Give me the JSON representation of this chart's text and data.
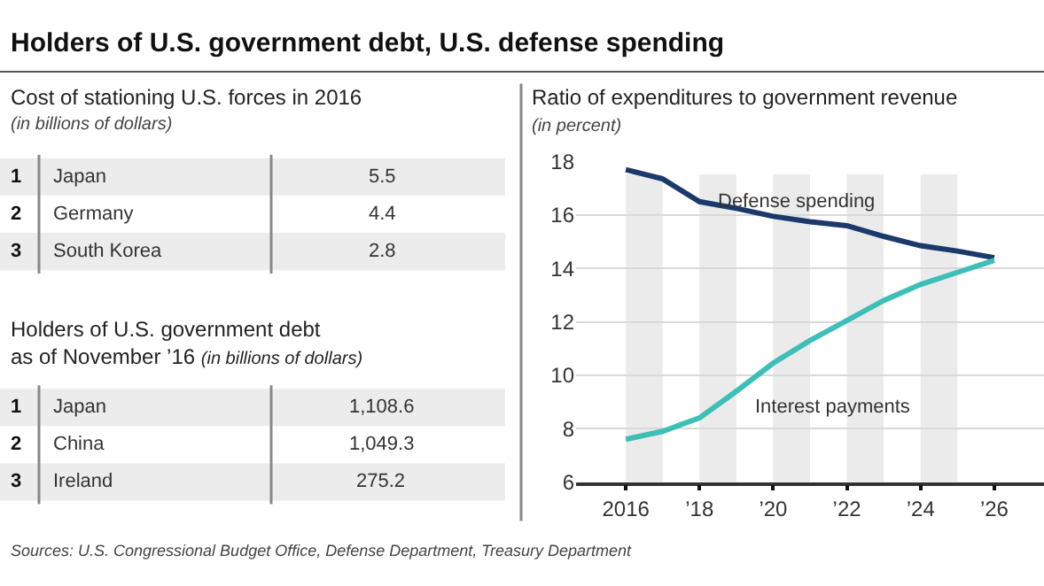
{
  "chart_data": [
    {
      "type": "other",
      "title": "Holders of U.S. government debt, U.S. defense spending",
      "annotations": [
        "Sources: U.S. Congressional Budget Office, Defense Department, Treasury Department"
      ]
    },
    {
      "type": "other",
      "title": "Cost of stationing U.S. forces in 2016",
      "subtitle": "(in billions of dollars)",
      "categories": [
        "Japan",
        "Germany",
        "South Korea"
      ],
      "values": [
        5.5,
        4.4,
        2.8
      ],
      "data_labels": true,
      "annotations": [
        "1",
        "2",
        "3"
      ]
    },
    {
      "type": "other",
      "title": "Holders of U.S. government debt\nas of November ’16",
      "subtitle": "(in billions of dollars)",
      "categories": [
        "Japan",
        "China",
        "Ireland"
      ],
      "values": [
        1108.6,
        1049.3,
        275.2
      ],
      "value_labels": [
        "1,108.6",
        "1,049.3",
        "275.2"
      ],
      "annotations": [
        "1",
        "2",
        "3"
      ]
    },
    {
      "type": "line",
      "title": "Ratio of expenditures to government revenue",
      "subtitle": "(in percent)",
      "x": [
        2016,
        2017,
        2018,
        2019,
        2020,
        2021,
        2022,
        2023,
        2024,
        2025,
        2026
      ],
      "series": [
        {
          "name": "Defense spending",
          "color": "#1b3a6b",
          "values": [
            17.7,
            17.35,
            16.5,
            16.25,
            15.95,
            15.75,
            15.6,
            15.2,
            14.85,
            14.65,
            14.4
          ]
        },
        {
          "name": "Interest payments",
          "color": "#3dbfb8",
          "values": [
            7.6,
            7.9,
            8.4,
            9.4,
            10.45,
            11.3,
            12.05,
            12.8,
            13.4,
            13.85,
            14.3
          ]
        }
      ],
      "xlim": [
        2014.65,
        2027.35
      ],
      "xticks": [
        {
          "value": 2016,
          "label": "2016"
        },
        {
          "value": 2018,
          "label": "’18"
        },
        {
          "value": 2020,
          "label": "’20"
        },
        {
          "value": 2022,
          "label": "’22"
        },
        {
          "value": 2024,
          "label": "’24"
        },
        {
          "value": 2026,
          "label": "’26"
        }
      ],
      "ylim": [
        6,
        18
      ],
      "yticks": [
        6,
        8,
        10,
        12,
        14,
        16,
        18
      ],
      "bands": [
        {
          "axis": "x",
          "from": 2016,
          "to": 2017,
          "color": "#ebebeb"
        },
        {
          "axis": "x",
          "from": 2018,
          "to": 2019,
          "color": "#ebebeb"
        },
        {
          "axis": "x",
          "from": 2020,
          "to": 2021,
          "color": "#ebebeb"
        },
        {
          "axis": "x",
          "from": 2022,
          "to": 2023,
          "color": "#ebebeb"
        },
        {
          "axis": "x",
          "from": 2024,
          "to": 2025,
          "color": "#ebebeb"
        }
      ],
      "grid": "y",
      "legend": false,
      "marker": "none",
      "line_style": "solid"
    }
  ]
}
